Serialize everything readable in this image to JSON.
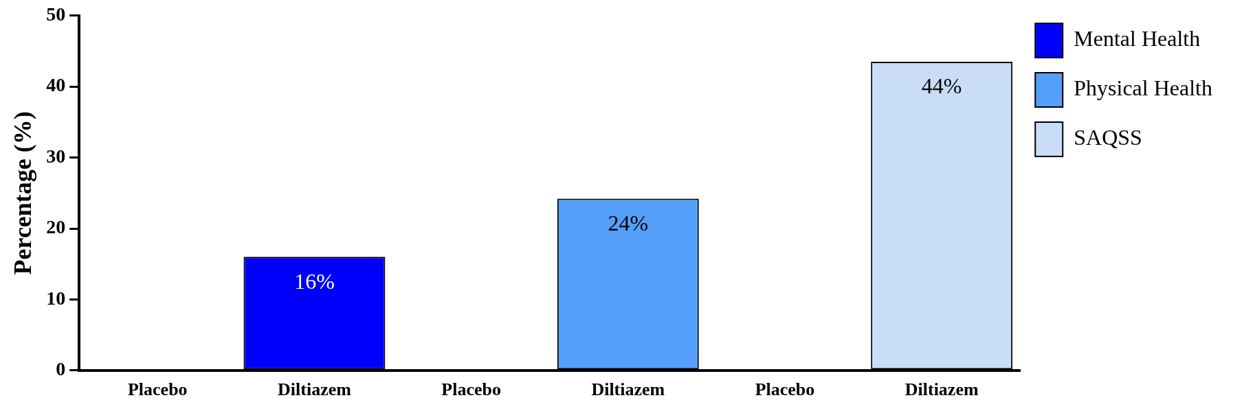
{
  "chart_data": {
    "type": "bar",
    "ylabel": "Percentage (%)",
    "categories": [
      "Placebo",
      "Diltiazem",
      "Placebo",
      "Diltiazem",
      "Placebo",
      "Diltiazem"
    ],
    "series": [
      {
        "name": "Mental Health",
        "color": "#0000ff",
        "values": [
          0,
          16,
          null,
          null,
          null,
          null
        ],
        "value_labels": [
          null,
          "16%",
          null,
          null,
          null,
          null
        ]
      },
      {
        "name": "Physical Health",
        "color": "#559ffa",
        "values": [
          null,
          null,
          0,
          24.2,
          null,
          null
        ],
        "value_labels": [
          null,
          null,
          null,
          "24%",
          null,
          null
        ]
      },
      {
        "name": "SAQSS",
        "color": "#c9ddf7",
        "values": [
          null,
          null,
          null,
          null,
          0,
          43.5
        ],
        "value_labels": [
          null,
          null,
          null,
          null,
          null,
          "44%"
        ]
      }
    ],
    "ylim": [
      0,
      50
    ],
    "yticks": [
      0,
      10,
      20,
      30,
      40,
      50
    ],
    "grid": false,
    "legend": "right"
  }
}
